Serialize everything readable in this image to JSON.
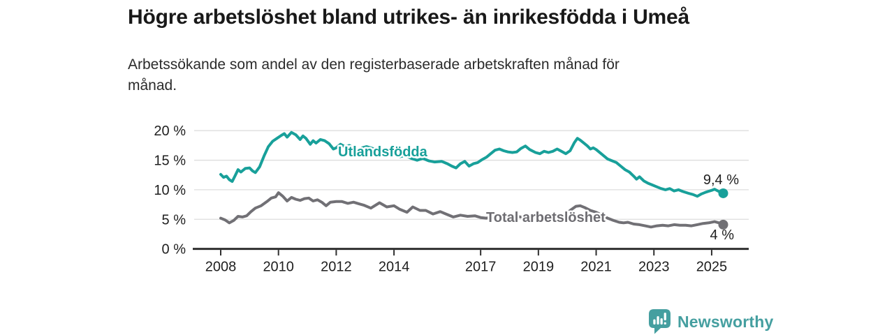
{
  "chart_data": {
    "type": "line",
    "title": "Högre arbetslöshet bland utrikes- än inrikesfödda i Umeå",
    "subtitle_lines": [
      "Arbetssökande som andel av den registerbaserade arbetskraften månad för",
      "månad."
    ],
    "grid": true,
    "legend_position": "inline-labels",
    "y_axis": {
      "range": [
        0,
        20
      ],
      "unit": "%",
      "ticks": [
        {
          "value": 0,
          "label": "0 %"
        },
        {
          "value": 5,
          "label": "5 %"
        },
        {
          "value": 10,
          "label": "10 %"
        },
        {
          "value": 15,
          "label": "15 %"
        },
        {
          "value": 20,
          "label": "20 %"
        }
      ]
    },
    "x_axis": {
      "range": [
        2008,
        2025.5
      ],
      "ticks": [
        {
          "value": 2008,
          "label": "2008"
        },
        {
          "value": 2010,
          "label": "2010"
        },
        {
          "value": 2012,
          "label": "2012"
        },
        {
          "value": 2014,
          "label": "2014"
        },
        {
          "value": 2017,
          "label": "2017"
        },
        {
          "value": 2019,
          "label": "2019"
        },
        {
          "value": 2021,
          "label": "2021"
        },
        {
          "value": 2023,
          "label": "2023"
        },
        {
          "value": 2025,
          "label": "2025"
        }
      ]
    },
    "series": [
      {
        "name": "Utlandsfödda",
        "color": "#18a09a",
        "end_label": "9,4 %",
        "end_value": 9.4,
        "points": [
          [
            2008.0,
            12.6
          ],
          [
            2008.1,
            12.1
          ],
          [
            2008.2,
            12.3
          ],
          [
            2008.3,
            11.7
          ],
          [
            2008.4,
            11.4
          ],
          [
            2008.5,
            12.4
          ],
          [
            2008.6,
            13.4
          ],
          [
            2008.7,
            13.0
          ],
          [
            2008.85,
            13.6
          ],
          [
            2009.0,
            13.7
          ],
          [
            2009.1,
            13.2
          ],
          [
            2009.2,
            12.9
          ],
          [
            2009.35,
            13.9
          ],
          [
            2009.5,
            15.7
          ],
          [
            2009.65,
            17.3
          ],
          [
            2009.8,
            18.2
          ],
          [
            2009.95,
            18.7
          ],
          [
            2010.1,
            19.2
          ],
          [
            2010.2,
            19.5
          ],
          [
            2010.3,
            18.9
          ],
          [
            2010.45,
            19.7
          ],
          [
            2010.6,
            19.3
          ],
          [
            2010.75,
            18.5
          ],
          [
            2010.85,
            19.1
          ],
          [
            2010.95,
            18.7
          ],
          [
            2011.1,
            17.7
          ],
          [
            2011.2,
            18.3
          ],
          [
            2011.3,
            17.9
          ],
          [
            2011.45,
            18.5
          ],
          [
            2011.6,
            18.3
          ],
          [
            2011.75,
            17.8
          ],
          [
            2011.9,
            16.9
          ],
          [
            2012.0,
            17.1
          ],
          [
            2012.15,
            17.7
          ],
          [
            2012.3,
            17.3
          ],
          [
            2012.45,
            17.5
          ],
          [
            2012.6,
            17.1
          ],
          [
            2012.75,
            16.7
          ],
          [
            2012.9,
            17.1
          ],
          [
            2013.05,
            17.3
          ],
          [
            2013.25,
            17.0
          ],
          [
            2013.45,
            16.7
          ],
          [
            2013.65,
            16.4
          ],
          [
            2013.85,
            16.6
          ],
          [
            2014.0,
            16.0
          ],
          [
            2014.2,
            15.6
          ],
          [
            2014.4,
            15.8
          ],
          [
            2014.6,
            15.3
          ],
          [
            2014.8,
            15.0
          ],
          [
            2015.0,
            15.3
          ],
          [
            2015.2,
            14.9
          ],
          [
            2015.4,
            14.7
          ],
          [
            2015.65,
            14.8
          ],
          [
            2015.85,
            14.4
          ],
          [
            2016.0,
            14.0
          ],
          [
            2016.15,
            13.7
          ],
          [
            2016.3,
            14.4
          ],
          [
            2016.45,
            14.8
          ],
          [
            2016.6,
            14.0
          ],
          [
            2016.75,
            14.4
          ],
          [
            2016.9,
            14.6
          ],
          [
            2017.05,
            15.1
          ],
          [
            2017.2,
            15.5
          ],
          [
            2017.35,
            16.1
          ],
          [
            2017.5,
            16.7
          ],
          [
            2017.65,
            16.9
          ],
          [
            2017.8,
            16.6
          ],
          [
            2017.95,
            16.4
          ],
          [
            2018.1,
            16.3
          ],
          [
            2018.25,
            16.4
          ],
          [
            2018.4,
            17.0
          ],
          [
            2018.55,
            17.4
          ],
          [
            2018.7,
            16.8
          ],
          [
            2018.9,
            16.3
          ],
          [
            2019.05,
            16.1
          ],
          [
            2019.2,
            16.5
          ],
          [
            2019.35,
            16.3
          ],
          [
            2019.5,
            16.5
          ],
          [
            2019.65,
            16.9
          ],
          [
            2019.8,
            16.5
          ],
          [
            2019.95,
            16.1
          ],
          [
            2020.1,
            16.6
          ],
          [
            2020.25,
            18.0
          ],
          [
            2020.35,
            18.7
          ],
          [
            2020.45,
            18.4
          ],
          [
            2020.6,
            17.8
          ],
          [
            2020.7,
            17.4
          ],
          [
            2020.8,
            16.9
          ],
          [
            2020.9,
            17.1
          ],
          [
            2021.0,
            16.8
          ],
          [
            2021.1,
            16.4
          ],
          [
            2021.25,
            15.8
          ],
          [
            2021.4,
            15.2
          ],
          [
            2021.55,
            14.9
          ],
          [
            2021.7,
            14.6
          ],
          [
            2021.85,
            14.0
          ],
          [
            2022.0,
            13.4
          ],
          [
            2022.15,
            13.0
          ],
          [
            2022.3,
            12.3
          ],
          [
            2022.4,
            11.8
          ],
          [
            2022.5,
            12.2
          ],
          [
            2022.65,
            11.5
          ],
          [
            2022.8,
            11.1
          ],
          [
            2022.95,
            10.8
          ],
          [
            2023.1,
            10.5
          ],
          [
            2023.25,
            10.2
          ],
          [
            2023.4,
            10.0
          ],
          [
            2023.55,
            10.2
          ],
          [
            2023.7,
            9.8
          ],
          [
            2023.85,
            10.0
          ],
          [
            2024.0,
            9.7
          ],
          [
            2024.2,
            9.4
          ],
          [
            2024.35,
            9.2
          ],
          [
            2024.5,
            8.9
          ],
          [
            2024.65,
            9.3
          ],
          [
            2024.8,
            9.6
          ],
          [
            2025.0,
            9.9
          ],
          [
            2025.1,
            10.1
          ],
          [
            2025.25,
            9.7
          ],
          [
            2025.4,
            9.4
          ]
        ]
      },
      {
        "name": "Total arbetslöshet",
        "color": "#717075",
        "end_label": "4 %",
        "end_value": 4.0,
        "points": [
          [
            2008.0,
            5.2
          ],
          [
            2008.15,
            4.9
          ],
          [
            2008.3,
            4.4
          ],
          [
            2008.45,
            4.8
          ],
          [
            2008.6,
            5.5
          ],
          [
            2008.75,
            5.4
          ],
          [
            2008.9,
            5.6
          ],
          [
            2009.05,
            6.3
          ],
          [
            2009.2,
            6.9
          ],
          [
            2009.4,
            7.3
          ],
          [
            2009.6,
            8.0
          ],
          [
            2009.75,
            8.6
          ],
          [
            2009.9,
            8.8
          ],
          [
            2010.0,
            9.5
          ],
          [
            2010.15,
            8.9
          ],
          [
            2010.3,
            8.1
          ],
          [
            2010.45,
            8.7
          ],
          [
            2010.6,
            8.4
          ],
          [
            2010.75,
            8.2
          ],
          [
            2010.9,
            8.5
          ],
          [
            2011.05,
            8.6
          ],
          [
            2011.2,
            8.1
          ],
          [
            2011.35,
            8.3
          ],
          [
            2011.5,
            7.9
          ],
          [
            2011.65,
            7.3
          ],
          [
            2011.8,
            7.9
          ],
          [
            2012.0,
            8.0
          ],
          [
            2012.2,
            8.0
          ],
          [
            2012.4,
            7.7
          ],
          [
            2012.6,
            7.9
          ],
          [
            2012.8,
            7.6
          ],
          [
            2012.95,
            7.4
          ],
          [
            2013.2,
            6.9
          ],
          [
            2013.5,
            7.8
          ],
          [
            2013.75,
            7.1
          ],
          [
            2014.0,
            7.3
          ],
          [
            2014.2,
            6.7
          ],
          [
            2014.45,
            6.2
          ],
          [
            2014.65,
            7.1
          ],
          [
            2014.9,
            6.5
          ],
          [
            2015.1,
            6.5
          ],
          [
            2015.35,
            5.9
          ],
          [
            2015.6,
            6.3
          ],
          [
            2015.8,
            5.9
          ],
          [
            2016.05,
            5.4
          ],
          [
            2016.3,
            5.7
          ],
          [
            2016.55,
            5.5
          ],
          [
            2016.8,
            5.6
          ],
          [
            2017.0,
            5.3
          ],
          [
            2017.2,
            5.2
          ],
          [
            2017.4,
            5.4
          ],
          [
            2017.6,
            5.2
          ],
          [
            2017.8,
            5.4
          ],
          [
            2018.0,
            5.3
          ],
          [
            2018.25,
            5.5
          ],
          [
            2018.5,
            5.3
          ],
          [
            2018.75,
            5.2
          ],
          [
            2019.0,
            5.3
          ],
          [
            2019.25,
            5.4
          ],
          [
            2019.5,
            5.5
          ],
          [
            2019.75,
            5.4
          ],
          [
            2019.9,
            5.7
          ],
          [
            2020.1,
            6.5
          ],
          [
            2020.3,
            7.2
          ],
          [
            2020.45,
            7.3
          ],
          [
            2020.6,
            7.0
          ],
          [
            2020.8,
            6.5
          ],
          [
            2021.0,
            6.2
          ],
          [
            2021.2,
            5.7
          ],
          [
            2021.4,
            5.2
          ],
          [
            2021.6,
            4.8
          ],
          [
            2021.8,
            4.5
          ],
          [
            2021.95,
            4.4
          ],
          [
            2022.1,
            4.5
          ],
          [
            2022.3,
            4.2
          ],
          [
            2022.5,
            4.1
          ],
          [
            2022.7,
            3.9
          ],
          [
            2022.9,
            3.7
          ],
          [
            2023.1,
            3.9
          ],
          [
            2023.3,
            4.0
          ],
          [
            2023.5,
            3.9
          ],
          [
            2023.7,
            4.1
          ],
          [
            2023.9,
            4.0
          ],
          [
            2024.1,
            4.0
          ],
          [
            2024.3,
            3.9
          ],
          [
            2024.5,
            4.1
          ],
          [
            2024.7,
            4.3
          ],
          [
            2024.9,
            4.4
          ],
          [
            2025.1,
            4.6
          ],
          [
            2025.25,
            4.4
          ],
          [
            2025.4,
            4.1
          ]
        ]
      }
    ],
    "annotations": [
      {
        "text": "9,4 %",
        "series": "Utlandsfödda"
      },
      {
        "text": "4 %",
        "series": "Total arbetslöshet"
      }
    ]
  },
  "footer": {
    "brand": "Newsworthy",
    "brand_color": "#459fa0"
  }
}
